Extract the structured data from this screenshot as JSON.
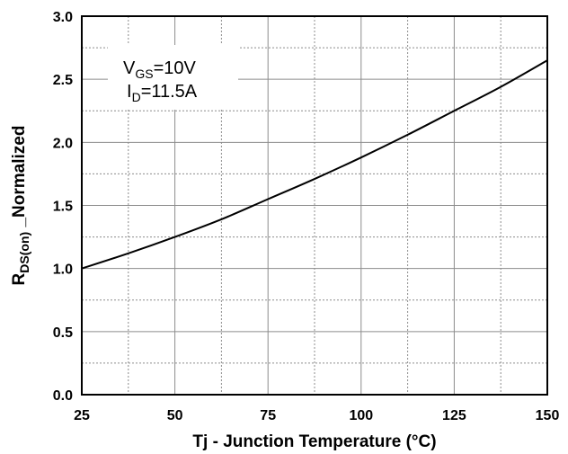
{
  "chart_data": {
    "type": "line",
    "xlabel": "Tj - Junction Temperature (°C)",
    "ylabel": {
      "main": "R",
      "sub": "DS(on)",
      "suffix": " _Normalized"
    },
    "xlim": [
      25,
      150
    ],
    "ylim": [
      0,
      3.0
    ],
    "x_ticks": [
      25,
      50,
      75,
      100,
      125,
      150
    ],
    "y_ticks": [
      0.0,
      0.5,
      1.0,
      1.5,
      2.0,
      2.5,
      3.0
    ],
    "x_tick_labels": [
      "25",
      "50",
      "75",
      "100",
      "125",
      "150"
    ],
    "y_tick_labels": [
      "0.0",
      "0.5",
      "1.0",
      "1.5",
      "2.0",
      "2.5",
      "3.0"
    ],
    "grid": true,
    "annotations": [
      {
        "main": "V",
        "sub": "GS",
        "rest": "=10V"
      },
      {
        "main": "I",
        "sub": "D",
        "rest": "=11.5A"
      }
    ],
    "series": [
      {
        "x": [
          25,
          37.5,
          50,
          62.5,
          75,
          87.5,
          100,
          112.5,
          125,
          137.5,
          150
        ],
        "values": [
          1.0,
          1.12,
          1.25,
          1.39,
          1.55,
          1.71,
          1.88,
          2.06,
          2.25,
          2.44,
          2.65
        ]
      }
    ],
    "colors": {
      "line": "#000000",
      "grid_major": "#8c8c8c",
      "grid_minor": "#8c8c8c"
    }
  }
}
